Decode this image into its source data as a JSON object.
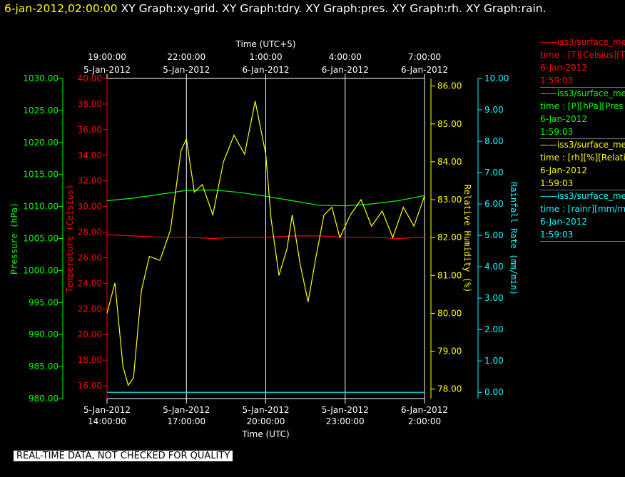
{
  "header": {
    "date": "6-jan-2012,02:00:00",
    "graphs": "XY Graph:xy-grid.  XY Graph:tdry.  XY Graph:pres.  XY Graph:rh.  XY Graph:rain."
  },
  "footer": "REAL-TIME DATA, NOT CHECKED FOR QUALITY",
  "colors": {
    "temperature": "#ff0000",
    "pressure": "#00ff00",
    "humidity": "#ffff00",
    "rain": "#00ffff",
    "grid": "#ffffff",
    "background": "#000000"
  },
  "legend": [
    {
      "line1": "——iss3/surface_me",
      "line2": "time : [T][Celsius][T",
      "line3": "6-Jan-2012",
      "line4": "1:59:03",
      "color": "#ff0000"
    },
    {
      "line1": "——iss3/surface_me",
      "line2": "time : [P][hPa][Pres",
      "line3": "6-Jan-2012",
      "line4": "1:59:03",
      "color": "#00ff00"
    },
    {
      "line1": "——iss3/surface_me",
      "line2": "time : [rh][%][Relati",
      "line3": "6-Jan-2012",
      "line4": "1:59:03",
      "color": "#ffff00"
    },
    {
      "line1": "——iss3/surface_me",
      "line2": "time : [rainr][mm/mi",
      "line3": "6-Jan-2012",
      "line4": "1:59:03",
      "color": "#00ffff"
    }
  ],
  "chart_data": {
    "type": "line",
    "x_axis_bottom": {
      "label": "Time (UTC)",
      "range": [
        "5-Jan-2012 14:00:00",
        "6-Jan-2012 2:00:00"
      ],
      "ticks": [
        {
          "date": "5-Jan-2012",
          "time": "14:00:00"
        },
        {
          "date": "5-Jan-2012",
          "time": "17:00:00"
        },
        {
          "date": "5-Jan-2012",
          "time": "20:00:00"
        },
        {
          "date": "5-Jan-2012",
          "time": "23:00:00"
        },
        {
          "date": "6-Jan-2012",
          "time": "2:00:00"
        }
      ]
    },
    "x_axis_top": {
      "label": "Time (UTC+5)",
      "ticks": [
        {
          "time": "19:00:00",
          "date": "5-Jan-2012"
        },
        {
          "time": "22:00:00",
          "date": "5-Jan-2012"
        },
        {
          "time": "1:00:00",
          "date": "6-Jan-2012"
        },
        {
          "time": "4:00:00",
          "date": "6-Jan-2012"
        },
        {
          "time": "7:00:00",
          "date": "6-Jan-2012"
        }
      ]
    },
    "y_axes": {
      "pressure": {
        "label": "Pressure (hPa)",
        "range": [
          980,
          1030
        ],
        "ticks": [
          "980.00",
          "985.00",
          "990.00",
          "995.00",
          "1000.00",
          "1005.00",
          "1010.00",
          "1015.00",
          "1020.00",
          "1025.00",
          "1030.00"
        ]
      },
      "temperature": {
        "label": "Temperature (Celsius)",
        "range": [
          15,
          40
        ],
        "ticks": [
          "16.00",
          "18.00",
          "20.00",
          "22.00",
          "24.00",
          "26.00",
          "28.00",
          "30.00",
          "32.00",
          "34.00",
          "36.00",
          "38.00",
          "40.00"
        ]
      },
      "humidity": {
        "label": "Relative Humidity (%)",
        "range": [
          77.75,
          86.2
        ],
        "ticks": [
          "78.00",
          "79.00",
          "80.00",
          "81.00",
          "82.00",
          "83.00",
          "84.00",
          "85.00",
          "86.00"
        ]
      },
      "rain": {
        "label": "Rainfall Rate (mm/min)",
        "range": [
          -0.2,
          10.0
        ],
        "ticks": [
          "0.00",
          "1.00",
          "2.00",
          "3.00",
          "4.00",
          "5.00",
          "6.00",
          "7.00",
          "8.00",
          "9.00",
          "10.00"
        ]
      }
    },
    "grid": "vertical lines at bottom-axis ticks",
    "series": [
      {
        "name": "Temperature",
        "axis": "temperature",
        "color": "#ff0000",
        "x": [
          0,
          1,
          2,
          3,
          4,
          5,
          6,
          7,
          8,
          9,
          10,
          11,
          12
        ],
        "y": [
          27.8,
          27.7,
          27.6,
          27.6,
          27.5,
          27.6,
          27.6,
          27.7,
          27.7,
          27.6,
          27.6,
          27.5,
          27.6
        ]
      },
      {
        "name": "Pressure",
        "axis": "pressure",
        "color": "#00ff00",
        "x": [
          0,
          1,
          2,
          3,
          4,
          5,
          6,
          7,
          8,
          9,
          10,
          11,
          12
        ],
        "y": [
          1010.9,
          1011.3,
          1011.9,
          1012.5,
          1012.6,
          1012.2,
          1011.6,
          1010.9,
          1010.2,
          1010.1,
          1010.4,
          1010.9,
          1011.7
        ]
      },
      {
        "name": "Relative Humidity",
        "axis": "humidity",
        "color": "#ffff00",
        "x": [
          0,
          0.3,
          0.6,
          0.8,
          1.0,
          1.3,
          1.6,
          2.0,
          2.4,
          2.8,
          3.0,
          3.3,
          3.6,
          4.0,
          4.4,
          4.8,
          5.2,
          5.6,
          6.0,
          6.2,
          6.5,
          6.8,
          7.0,
          7.3,
          7.6,
          7.9,
          8.2,
          8.5,
          8.8,
          9.2,
          9.6,
          10.0,
          10.4,
          10.8,
          11.2,
          11.6,
          12.0
        ],
        "y": [
          80.0,
          80.8,
          78.6,
          78.1,
          78.3,
          80.6,
          81.5,
          81.4,
          82.2,
          84.3,
          84.6,
          83.2,
          83.4,
          82.6,
          84.0,
          84.7,
          84.2,
          85.6,
          84.2,
          82.5,
          81.0,
          81.7,
          82.6,
          81.3,
          80.3,
          81.5,
          82.6,
          82.8,
          82.0,
          82.6,
          83.0,
          82.3,
          82.7,
          82.0,
          82.8,
          82.3,
          83.1
        ]
      },
      {
        "name": "Rainfall Rate",
        "axis": "rain",
        "color": "#00ffff",
        "x": [
          0,
          12
        ],
        "y": [
          0.0,
          0.0
        ]
      }
    ]
  }
}
